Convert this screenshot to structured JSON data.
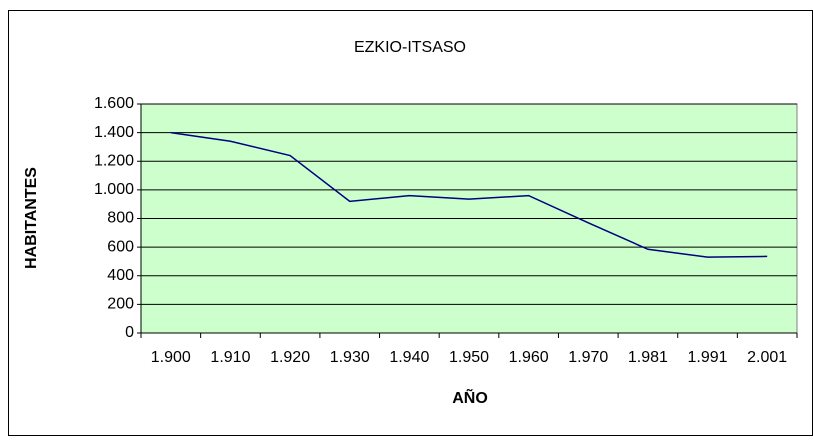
{
  "chart_data": {
    "type": "line",
    "title": "EZKIO-ITSASO",
    "xlabel": "AÑO",
    "ylabel": "HABITANTES",
    "categories": [
      "1.900",
      "1.910",
      "1.920",
      "1.930",
      "1.940",
      "1.950",
      "1.960",
      "1.970",
      "1.981",
      "1.991",
      "2.001"
    ],
    "series": [
      {
        "name": "EZKIO-ITSASO",
        "color": "#000080",
        "values": [
          1400,
          1340,
          1240,
          920,
          960,
          935,
          960,
          770,
          585,
          530,
          535
        ]
      }
    ],
    "ylim": [
      0,
      1600
    ],
    "yticks": [
      0,
      200,
      400,
      600,
      800,
      {
        "value": 1000,
        "label": "1.000"
      },
      {
        "value": 1200,
        "label": "1.200"
      },
      {
        "value": 1400,
        "label": "1.400"
      },
      {
        "value": 1600,
        "label": "1.600"
      }
    ],
    "grid": true,
    "background": "#ccffcc"
  }
}
